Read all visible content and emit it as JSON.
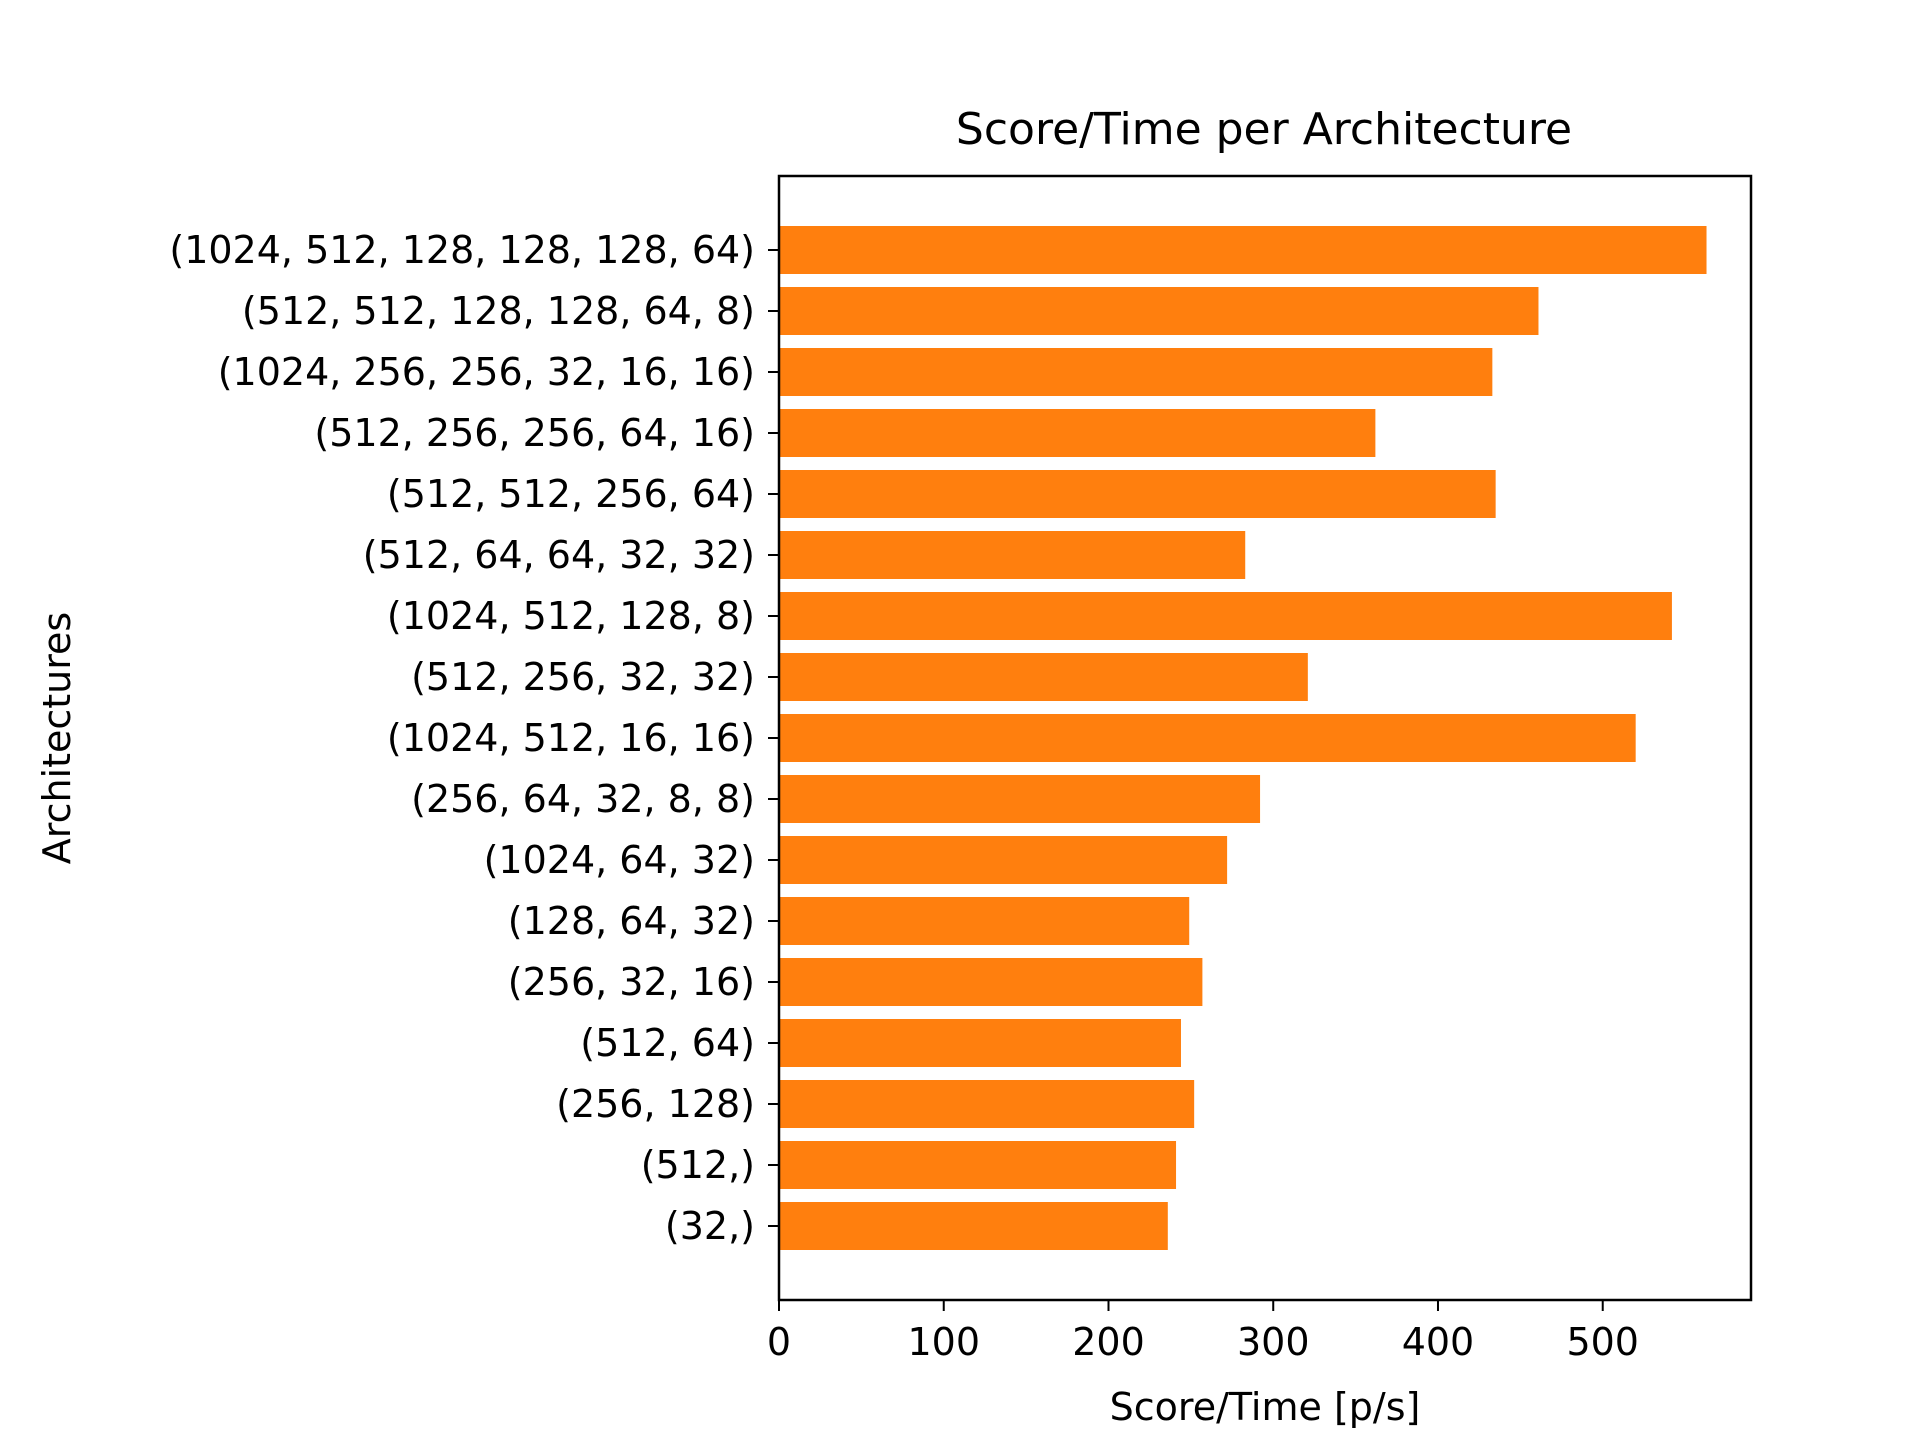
{
  "chart_data": {
    "type": "bar",
    "orientation": "horizontal",
    "title": "Score/Time per Architecture",
    "xlabel": "Score/Time [p/s]",
    "ylabel": "Architectures",
    "xlim": [
      0,
      590
    ],
    "xticks": [
      0,
      100,
      200,
      300,
      400,
      500
    ],
    "grid": false,
    "legend": "none",
    "bar_color": "#ff7f0e",
    "categories": [
      "(1024, 512, 128, 128, 128, 64)",
      "(512, 512, 128, 128, 64, 8)",
      "(1024, 256, 256, 32, 16, 16)",
      "(512, 256, 256, 64, 16)",
      "(512, 512, 256, 64)",
      "(512, 64, 64, 32, 32)",
      "(1024, 512, 128, 8)",
      "(512, 256, 32, 32)",
      "(1024, 512, 16, 16)",
      "(256, 64, 32, 8, 8)",
      "(1024, 64, 32)",
      "(128, 64, 32)",
      "(256, 32, 16)",
      "(512, 64)",
      "(256, 128)",
      "(512,)",
      "(32,)"
    ],
    "values": [
      563,
      461,
      433,
      362,
      435,
      283,
      542,
      321,
      520,
      292,
      272,
      249,
      257,
      244,
      252,
      241,
      236
    ]
  }
}
